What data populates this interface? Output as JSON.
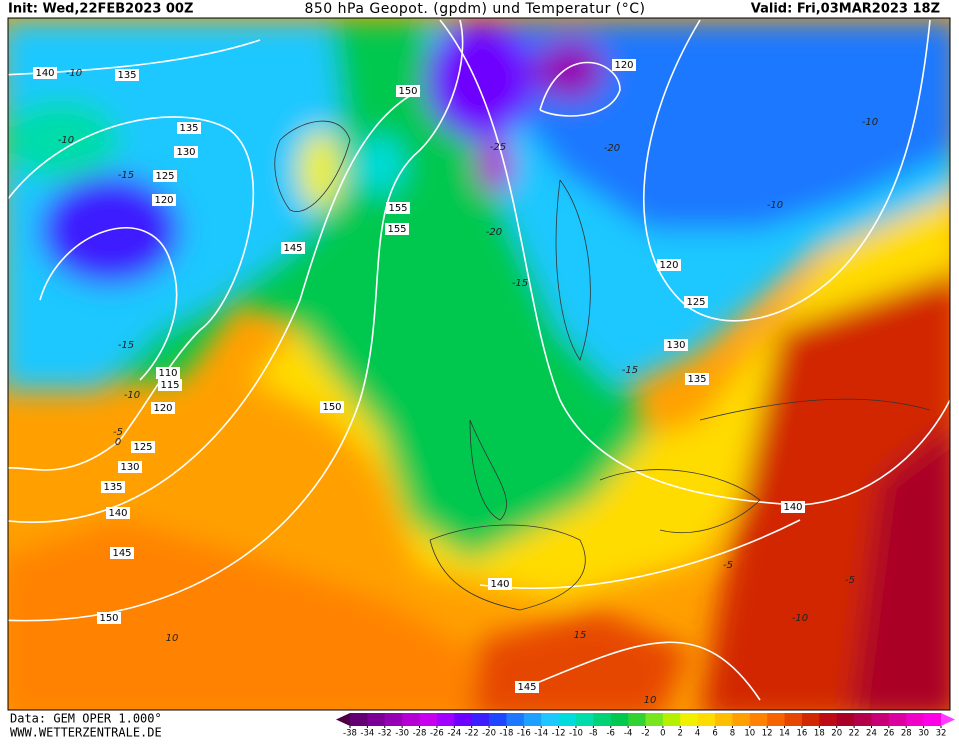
{
  "header": {
    "init": "Init: Wed,22FEB2023 00Z",
    "title": "850 hPa Geopot. (gpdm) und Temperatur (°C)",
    "valid": "Valid: Fri,03MAR2023 18Z"
  },
  "footer": {
    "source": "Data: GEM OPER 1.000°",
    "site": "WWW.WETTERZENTRALE.DE"
  },
  "map": {
    "isohypse_labels": [
      140,
      135,
      150,
      120,
      135,
      130,
      125,
      120,
      145,
      155,
      155,
      120,
      125,
      130,
      135,
      110,
      115,
      120,
      150,
      125,
      130,
      135,
      140,
      145,
      150,
      140,
      140,
      145
    ],
    "isotherm_labels": [
      -10,
      -10,
      -15,
      -15,
      -10,
      -5,
      0,
      -20,
      -25,
      -15,
      -15,
      -10,
      -10,
      -5,
      10,
      15,
      -10,
      -5,
      10,
      -20
    ]
  },
  "colorbar": {
    "ticks": [
      -38,
      -34,
      -32,
      -30,
      -28,
      -26,
      -24,
      -22,
      -20,
      -18,
      -16,
      -14,
      -12,
      -10,
      -8,
      -6,
      -4,
      -2,
      0,
      2,
      4,
      6,
      8,
      10,
      12,
      14,
      16,
      18,
      20,
      22,
      24,
      26,
      28,
      30,
      32
    ],
    "colors": [
      "#4b0046",
      "#640073",
      "#7d0096",
      "#9600b4",
      "#b400d2",
      "#c800f0",
      "#a000ff",
      "#6e00ff",
      "#3c1eff",
      "#1e46ff",
      "#1e78ff",
      "#1ea0ff",
      "#1ec8ff",
      "#00dcdc",
      "#00dcaa",
      "#00d278",
      "#00c850",
      "#32d232",
      "#78e61e",
      "#b4f000",
      "#f0f000",
      "#ffdc00",
      "#ffbe00",
      "#ffa000",
      "#ff8200",
      "#f56400",
      "#e64600",
      "#d22800",
      "#be0a14",
      "#aa0028",
      "#b4004b",
      "#c80078",
      "#dc00a0",
      "#f000c8",
      "#ff00e6",
      "#ff3cff"
    ]
  }
}
